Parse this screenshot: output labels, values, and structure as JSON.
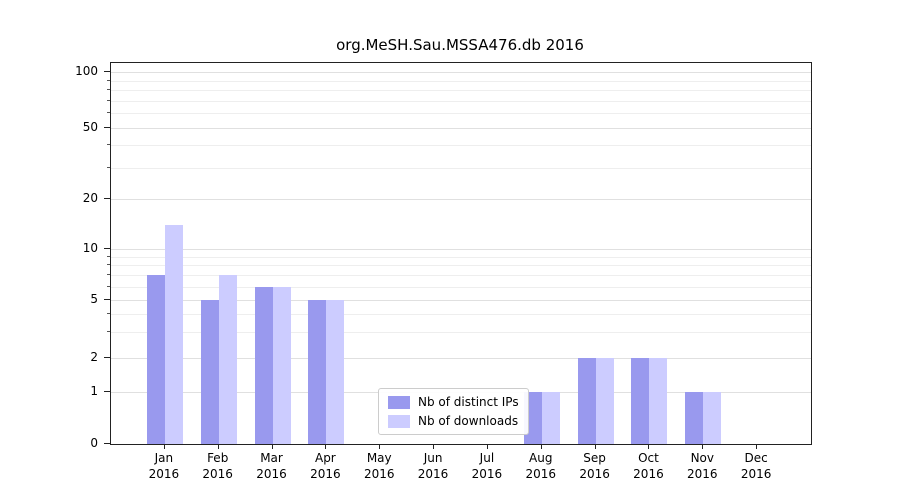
{
  "chart_data": {
    "type": "bar",
    "title": "org.MeSH.Sau.MSSA476.db 2016",
    "categories": [
      "Jan",
      "Feb",
      "Mar",
      "Apr",
      "May",
      "Jun",
      "Jul",
      "Aug",
      "Sep",
      "Oct",
      "Nov",
      "Dec"
    ],
    "year": "2016",
    "series": [
      {
        "name": "Nb of distinct IPs",
        "color": "#9999ee",
        "values": [
          7,
          5,
          6,
          5,
          0,
          0,
          0,
          1,
          2,
          2,
          1,
          0
        ]
      },
      {
        "name": "Nb of downloads",
        "color": "#ccccff",
        "values": [
          14,
          7,
          6,
          5,
          0,
          0,
          0,
          1,
          2,
          2,
          1,
          0
        ]
      }
    ],
    "y_axis": {
      "scale": "symlog",
      "ticks": [
        0,
        1,
        2,
        5,
        10,
        20,
        50,
        100
      ],
      "minor_gridlines": [
        3,
        4,
        6,
        7,
        8,
        9,
        30,
        40,
        60,
        70,
        80,
        90
      ],
      "min": 0,
      "max": 110
    },
    "grid": true,
    "legend": {
      "position": "lower center",
      "entries": [
        "Nb of distinct IPs",
        "Nb of downloads"
      ]
    }
  }
}
